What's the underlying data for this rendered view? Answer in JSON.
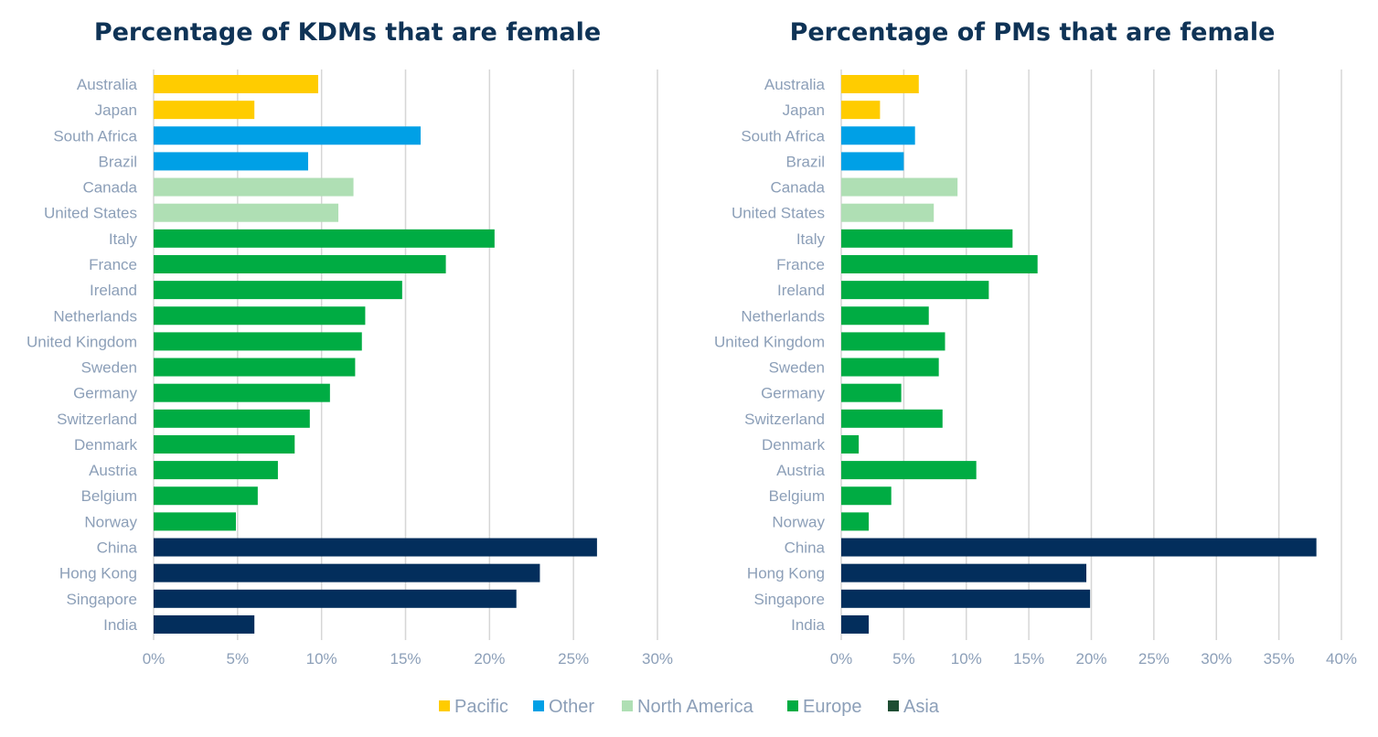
{
  "chart_data": [
    {
      "type": "bar",
      "orientation": "horizontal",
      "title": "Percentage of KDMs that are female",
      "xlim": [
        0,
        30
      ],
      "x_ticks": [
        "0%",
        "5%",
        "10%",
        "15%",
        "20%",
        "25%",
        "30%"
      ],
      "grid": "vertical",
      "categories": [
        "Australia",
        "Japan",
        "South Africa",
        "Brazil",
        "Canada",
        "United States",
        "Italy",
        "France",
        "Ireland",
        "Netherlands",
        "United Kingdom",
        "Sweden",
        "Germany",
        "Switzerland",
        "Denmark",
        "Austria",
        "Belgium",
        "Norway",
        "China",
        "Hong Kong",
        "Singapore",
        "India"
      ],
      "values": [
        9.8,
        6.0,
        15.9,
        9.2,
        11.9,
        11.0,
        20.3,
        17.4,
        14.8,
        12.6,
        12.4,
        12.0,
        10.5,
        9.3,
        8.4,
        7.4,
        6.2,
        4.9,
        26.4,
        23.0,
        21.6,
        6.0
      ],
      "groups": [
        "Pacific",
        "Pacific",
        "Other",
        "Other",
        "North America",
        "North America",
        "Europe",
        "Europe",
        "Europe",
        "Europe",
        "Europe",
        "Europe",
        "Europe",
        "Europe",
        "Europe",
        "Europe",
        "Europe",
        "Europe",
        "Asia",
        "Asia",
        "Asia",
        "Asia"
      ]
    },
    {
      "type": "bar",
      "orientation": "horizontal",
      "title": "Percentage of PMs that are female",
      "xlim": [
        0,
        40
      ],
      "x_ticks": [
        "0%",
        "5%",
        "10%",
        "15%",
        "20%",
        "25%",
        "30%",
        "35%",
        "40%"
      ],
      "grid": "vertical",
      "categories": [
        "Australia",
        "Japan",
        "South Africa",
        "Brazil",
        "Canada",
        "United States",
        "Italy",
        "France",
        "Ireland",
        "Netherlands",
        "United Kingdom",
        "Sweden",
        "Germany",
        "Switzerland",
        "Denmark",
        "Austria",
        "Belgium",
        "Norway",
        "China",
        "Hong Kong",
        "Singapore",
        "India"
      ],
      "values": [
        6.2,
        3.1,
        5.9,
        5.0,
        9.3,
        7.4,
        13.7,
        15.7,
        11.8,
        7.0,
        8.3,
        7.8,
        4.8,
        8.1,
        1.4,
        10.8,
        4.0,
        2.2,
        38.0,
        19.6,
        19.9,
        2.2
      ],
      "groups": [
        "Pacific",
        "Pacific",
        "Other",
        "Other",
        "North America",
        "North America",
        "Europe",
        "Europe",
        "Europe",
        "Europe",
        "Europe",
        "Europe",
        "Europe",
        "Europe",
        "Europe",
        "Europe",
        "Europe",
        "Europe",
        "Asia",
        "Asia",
        "Asia",
        "Asia"
      ]
    }
  ],
  "legend": {
    "placement": "bottom",
    "items": [
      {
        "label": "Pacific",
        "color": "#ffcc00"
      },
      {
        "label": "Other",
        "color": "#00a0e6"
      },
      {
        "label": "North America",
        "color": "#afdfb4"
      },
      {
        "label": "Europe",
        "color": "#00ac43"
      },
      {
        "label": "Asia",
        "color": "#032e5c"
      }
    ],
    "asia_swatch_color": "#1e4d33"
  }
}
